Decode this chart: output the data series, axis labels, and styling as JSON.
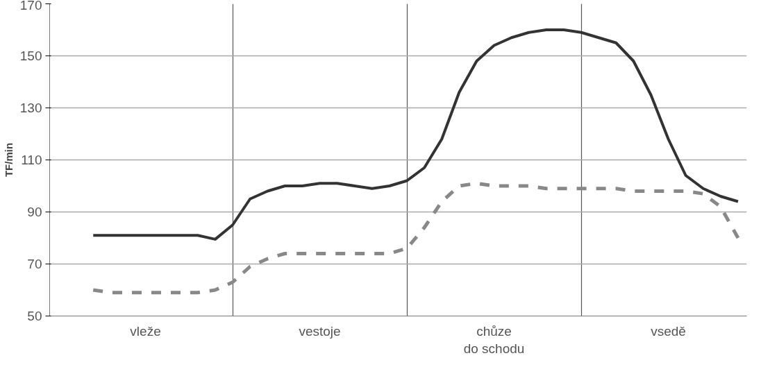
{
  "chart_data": {
    "type": "line",
    "ylabel": "TF/min",
    "ylim": [
      50,
      170
    ],
    "yticks": [
      50,
      70,
      90,
      110,
      130,
      150,
      170
    ],
    "categories": [
      null,
      null,
      null,
      null,
      null,
      "vleže",
      null,
      null,
      null,
      null,
      null,
      null,
      null,
      null,
      null,
      "vestoje",
      null,
      null,
      null,
      null,
      null,
      null,
      null,
      null,
      null,
      "chůze\ndo schodu",
      null,
      null,
      null,
      null,
      null,
      null,
      null,
      null,
      null,
      "vsedě",
      null,
      null,
      null,
      null
    ],
    "grid": true,
    "marker": "none",
    "series": [
      {
        "color": "#333333",
        "line_style": "solid",
        "values": [
          null,
          null,
          81,
          81,
          81,
          81,
          81,
          81,
          81,
          79.5,
          85,
          95,
          98,
          100,
          100,
          101,
          101,
          100,
          99,
          100,
          102,
          107,
          118,
          136,
          148,
          154,
          157,
          159,
          160,
          160,
          159,
          157,
          155,
          148,
          135,
          118,
          104,
          99,
          96,
          94
        ]
      },
      {
        "color": "#888888",
        "line_style": "dashed",
        "values": [
          null,
          null,
          60,
          59,
          59,
          59,
          59,
          59,
          59,
          60,
          63,
          69,
          72,
          74,
          74,
          74,
          74,
          74,
          74,
          74,
          76,
          84,
          94,
          100,
          101,
          100,
          100,
          100,
          99,
          99,
          99,
          99,
          99,
          98,
          98,
          98,
          98,
          97,
          92,
          80
        ]
      }
    ]
  }
}
